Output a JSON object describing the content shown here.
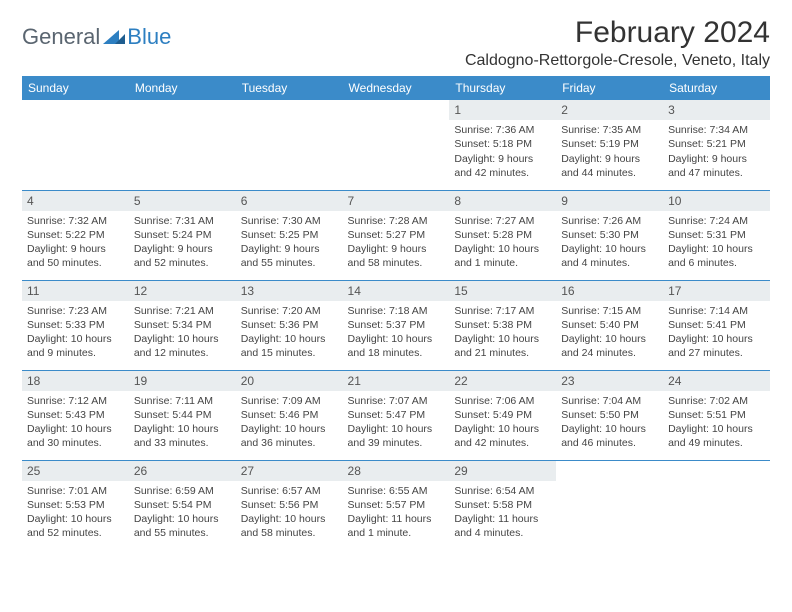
{
  "brand": {
    "part1": "General",
    "part2": "Blue"
  },
  "title": "February 2024",
  "location": "Caldogno-Rettorgole-Cresole, Veneto, Italy",
  "colors": {
    "header_bg": "#3b8bc9",
    "header_text": "#ffffff",
    "row_divider": "#3b8bc9",
    "daynum_bg": "#e9edef",
    "text": "#444444",
    "logo_gray": "#5a6570",
    "logo_blue": "#2d7fc1"
  },
  "day_headers": [
    "Sunday",
    "Monday",
    "Tuesday",
    "Wednesday",
    "Thursday",
    "Friday",
    "Saturday"
  ],
  "weeks": [
    [
      null,
      null,
      null,
      null,
      {
        "n": "1",
        "sunrise": "7:36 AM",
        "sunset": "5:18 PM",
        "daylight": "9 hours and 42 minutes."
      },
      {
        "n": "2",
        "sunrise": "7:35 AM",
        "sunset": "5:19 PM",
        "daylight": "9 hours and 44 minutes."
      },
      {
        "n": "3",
        "sunrise": "7:34 AM",
        "sunset": "5:21 PM",
        "daylight": "9 hours and 47 minutes."
      }
    ],
    [
      {
        "n": "4",
        "sunrise": "7:32 AM",
        "sunset": "5:22 PM",
        "daylight": "9 hours and 50 minutes."
      },
      {
        "n": "5",
        "sunrise": "7:31 AM",
        "sunset": "5:24 PM",
        "daylight": "9 hours and 52 minutes."
      },
      {
        "n": "6",
        "sunrise": "7:30 AM",
        "sunset": "5:25 PM",
        "daylight": "9 hours and 55 minutes."
      },
      {
        "n": "7",
        "sunrise": "7:28 AM",
        "sunset": "5:27 PM",
        "daylight": "9 hours and 58 minutes."
      },
      {
        "n": "8",
        "sunrise": "7:27 AM",
        "sunset": "5:28 PM",
        "daylight": "10 hours and 1 minute."
      },
      {
        "n": "9",
        "sunrise": "7:26 AM",
        "sunset": "5:30 PM",
        "daylight": "10 hours and 4 minutes."
      },
      {
        "n": "10",
        "sunrise": "7:24 AM",
        "sunset": "5:31 PM",
        "daylight": "10 hours and 6 minutes."
      }
    ],
    [
      {
        "n": "11",
        "sunrise": "7:23 AM",
        "sunset": "5:33 PM",
        "daylight": "10 hours and 9 minutes."
      },
      {
        "n": "12",
        "sunrise": "7:21 AM",
        "sunset": "5:34 PM",
        "daylight": "10 hours and 12 minutes."
      },
      {
        "n": "13",
        "sunrise": "7:20 AM",
        "sunset": "5:36 PM",
        "daylight": "10 hours and 15 minutes."
      },
      {
        "n": "14",
        "sunrise": "7:18 AM",
        "sunset": "5:37 PM",
        "daylight": "10 hours and 18 minutes."
      },
      {
        "n": "15",
        "sunrise": "7:17 AM",
        "sunset": "5:38 PM",
        "daylight": "10 hours and 21 minutes."
      },
      {
        "n": "16",
        "sunrise": "7:15 AM",
        "sunset": "5:40 PM",
        "daylight": "10 hours and 24 minutes."
      },
      {
        "n": "17",
        "sunrise": "7:14 AM",
        "sunset": "5:41 PM",
        "daylight": "10 hours and 27 minutes."
      }
    ],
    [
      {
        "n": "18",
        "sunrise": "7:12 AM",
        "sunset": "5:43 PM",
        "daylight": "10 hours and 30 minutes."
      },
      {
        "n": "19",
        "sunrise": "7:11 AM",
        "sunset": "5:44 PM",
        "daylight": "10 hours and 33 minutes."
      },
      {
        "n": "20",
        "sunrise": "7:09 AM",
        "sunset": "5:46 PM",
        "daylight": "10 hours and 36 minutes."
      },
      {
        "n": "21",
        "sunrise": "7:07 AM",
        "sunset": "5:47 PM",
        "daylight": "10 hours and 39 minutes."
      },
      {
        "n": "22",
        "sunrise": "7:06 AM",
        "sunset": "5:49 PM",
        "daylight": "10 hours and 42 minutes."
      },
      {
        "n": "23",
        "sunrise": "7:04 AM",
        "sunset": "5:50 PM",
        "daylight": "10 hours and 46 minutes."
      },
      {
        "n": "24",
        "sunrise": "7:02 AM",
        "sunset": "5:51 PM",
        "daylight": "10 hours and 49 minutes."
      }
    ],
    [
      {
        "n": "25",
        "sunrise": "7:01 AM",
        "sunset": "5:53 PM",
        "daylight": "10 hours and 52 minutes."
      },
      {
        "n": "26",
        "sunrise": "6:59 AM",
        "sunset": "5:54 PM",
        "daylight": "10 hours and 55 minutes."
      },
      {
        "n": "27",
        "sunrise": "6:57 AM",
        "sunset": "5:56 PM",
        "daylight": "10 hours and 58 minutes."
      },
      {
        "n": "28",
        "sunrise": "6:55 AM",
        "sunset": "5:57 PM",
        "daylight": "11 hours and 1 minute."
      },
      {
        "n": "29",
        "sunrise": "6:54 AM",
        "sunset": "5:58 PM",
        "daylight": "11 hours and 4 minutes."
      },
      null,
      null
    ]
  ],
  "labels": {
    "sunrise": "Sunrise:",
    "sunset": "Sunset:",
    "daylight": "Daylight:"
  }
}
